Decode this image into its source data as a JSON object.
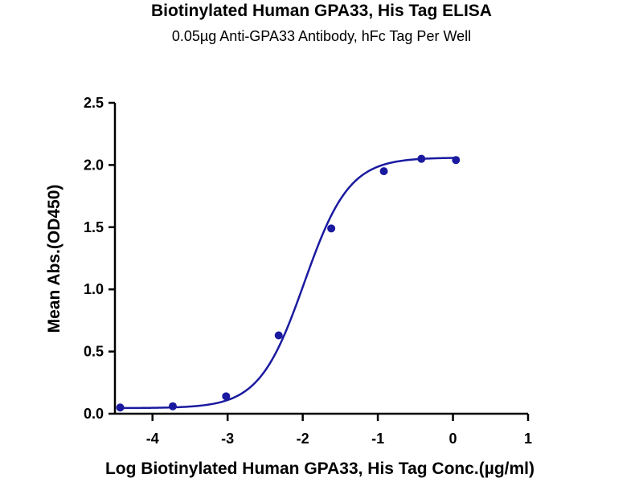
{
  "chart_data": {
    "type": "scatter",
    "title": "Biotinylated Human GPA33, His Tag ELISA",
    "subtitle": "0.05µg Anti-GPA33 Antibody, hFc Tag Per Well",
    "xlabel": "Log Biotinylated Human GPA33, His Tag Conc.(µg/ml)",
    "ylabel": "Mean Abs.(OD450)",
    "xlim": [
      -4.5,
      1
    ],
    "ylim": [
      0,
      2.5
    ],
    "x_ticks": [
      -4,
      -3,
      -2,
      -1,
      0,
      1
    ],
    "y_ticks": [
      0.0,
      0.5,
      1.0,
      1.5,
      2.0,
      2.5
    ],
    "x_tick_labels": [
      "-4",
      "-3",
      "-2",
      "-1",
      "0",
      "1"
    ],
    "y_tick_labels": [
      "0.0",
      "0.5",
      "1.0",
      "1.5",
      "2.0",
      "2.5"
    ],
    "grid": false,
    "series": [
      {
        "color": "#1a1aa0",
        "points": [
          {
            "x": -4.43,
            "y": 0.05
          },
          {
            "x": -3.73,
            "y": 0.06
          },
          {
            "x": -3.02,
            "y": 0.14
          },
          {
            "x": -2.32,
            "y": 0.63
          },
          {
            "x": -1.62,
            "y": 1.49
          },
          {
            "x": -0.92,
            "y": 1.95
          },
          {
            "x": -0.42,
            "y": 2.05
          },
          {
            "x": 0.04,
            "y": 2.04
          }
        ],
        "fit": {
          "model": "4PL",
          "bottom": 0.045,
          "top": 2.06,
          "logEC50": -1.98,
          "hill": 1.45,
          "x_range": [
            -4.43,
            0.04
          ]
        }
      }
    ]
  }
}
